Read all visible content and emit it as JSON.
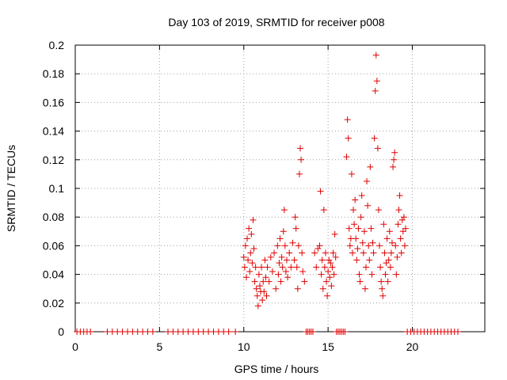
{
  "chart_data": {
    "type": "scatter",
    "title": "Day 103 of 2019, SRMTID for receiver p008",
    "xlabel": "GPS time / hours",
    "ylabel": "SRMTID / TECUs",
    "xlim": [
      0,
      24.3
    ],
    "ylim": [
      0,
      0.2
    ],
    "x_ticks": [
      0,
      5,
      10,
      15,
      20
    ],
    "y_ticks": [
      0,
      0.02,
      0.04,
      0.06,
      0.08,
      0.1,
      0.12,
      0.14,
      0.16,
      0.18,
      0.2
    ],
    "x_tick_labels": [
      "0",
      "5",
      "10",
      "15",
      "20"
    ],
    "y_tick_labels": [
      "0",
      "0.02",
      "0.04",
      "0.06",
      "0.08",
      "0.1",
      "0.12",
      "0.14",
      "0.16",
      "0.18",
      "0.2"
    ],
    "grid": true,
    "marker": "+",
    "series": [
      {
        "name": "SRMTID",
        "color": "#e00000",
        "points": [
          [
            0.1,
            0
          ],
          [
            0.3,
            0
          ],
          [
            0.5,
            0
          ],
          [
            0.7,
            0
          ],
          [
            0.9,
            0
          ],
          [
            1.9,
            0
          ],
          [
            2.2,
            0
          ],
          [
            2.5,
            0
          ],
          [
            2.8,
            0
          ],
          [
            3.1,
            0
          ],
          [
            3.4,
            0
          ],
          [
            3.7,
            0
          ],
          [
            4.0,
            0
          ],
          [
            4.3,
            0
          ],
          [
            4.6,
            0
          ],
          [
            5.5,
            0
          ],
          [
            5.8,
            0
          ],
          [
            6.1,
            0
          ],
          [
            6.4,
            0
          ],
          [
            6.7,
            0
          ],
          [
            7.0,
            0
          ],
          [
            7.3,
            0
          ],
          [
            7.6,
            0
          ],
          [
            7.9,
            0
          ],
          [
            8.2,
            0
          ],
          [
            8.5,
            0
          ],
          [
            8.8,
            0
          ],
          [
            9.1,
            0
          ],
          [
            9.5,
            0
          ],
          [
            10.0,
            0.052
          ],
          [
            10.05,
            0.045
          ],
          [
            10.1,
            0.06
          ],
          [
            10.15,
            0.038
          ],
          [
            10.2,
            0.065
          ],
          [
            10.25,
            0.05
          ],
          [
            10.3,
            0.072
          ],
          [
            10.35,
            0.042
          ],
          [
            10.4,
            0.055
          ],
          [
            10.45,
            0.068
          ],
          [
            10.5,
            0.048
          ],
          [
            10.55,
            0.078
          ],
          [
            10.6,
            0.058
          ],
          [
            10.65,
            0.035
          ],
          [
            10.7,
            0.045
          ],
          [
            10.75,
            0.03
          ],
          [
            10.8,
            0.025
          ],
          [
            10.85,
            0.018
          ],
          [
            10.9,
            0.04
          ],
          [
            10.95,
            0.032
          ],
          [
            11.0,
            0.028
          ],
          [
            11.05,
            0.045
          ],
          [
            11.1,
            0.022
          ],
          [
            11.15,
            0.035
          ],
          [
            11.2,
            0.028
          ],
          [
            11.25,
            0.05
          ],
          [
            11.3,
            0.038
          ],
          [
            11.35,
            0.025
          ],
          [
            11.4,
            0.045
          ],
          [
            11.5,
            0.035
          ],
          [
            11.6,
            0.052
          ],
          [
            11.7,
            0.042
          ],
          [
            11.8,
            0.055
          ],
          [
            11.9,
            0.03
          ],
          [
            12.0,
            0.06
          ],
          [
            12.05,
            0.04
          ],
          [
            12.1,
            0.048
          ],
          [
            12.15,
            0.065
          ],
          [
            12.2,
            0.035
          ],
          [
            12.25,
            0.052
          ],
          [
            12.3,
            0.045
          ],
          [
            12.35,
            0.07
          ],
          [
            12.4,
            0.085
          ],
          [
            12.45,
            0.06
          ],
          [
            12.5,
            0.042
          ],
          [
            12.55,
            0.05
          ],
          [
            12.6,
            0.038
          ],
          [
            12.7,
            0.055
          ],
          [
            12.8,
            0.045
          ],
          [
            12.9,
            0.062
          ],
          [
            13.0,
            0.05
          ],
          [
            13.05,
            0.08
          ],
          [
            13.1,
            0.072
          ],
          [
            13.15,
            0.045
          ],
          [
            13.2,
            0.03
          ],
          [
            13.25,
            0.06
          ],
          [
            13.3,
            0.11
          ],
          [
            13.35,
            0.128
          ],
          [
            13.4,
            0.12
          ],
          [
            13.45,
            0.055
          ],
          [
            13.5,
            0.042
          ],
          [
            13.6,
            0.035
          ],
          [
            13.7,
            0
          ],
          [
            13.8,
            0
          ],
          [
            13.9,
            0
          ],
          [
            14.0,
            0
          ],
          [
            14.1,
            0
          ],
          [
            14.2,
            0.055
          ],
          [
            14.3,
            0.045
          ],
          [
            14.4,
            0.058
          ],
          [
            14.5,
            0.06
          ],
          [
            14.55,
            0.098
          ],
          [
            14.6,
            0.04
          ],
          [
            14.65,
            0.05
          ],
          [
            14.7,
            0.03
          ],
          [
            14.75,
            0.085
          ],
          [
            14.8,
            0.045
          ],
          [
            14.85,
            0.055
          ],
          [
            14.9,
            0.035
          ],
          [
            14.95,
            0.025
          ],
          [
            15.0,
            0.042
          ],
          [
            15.05,
            0.05
          ],
          [
            15.1,
            0.038
          ],
          [
            15.15,
            0.048
          ],
          [
            15.2,
            0.032
          ],
          [
            15.25,
            0.045
          ],
          [
            15.3,
            0.055
          ],
          [
            15.35,
            0.04
          ],
          [
            15.4,
            0.068
          ],
          [
            15.45,
            0.052
          ],
          [
            15.5,
            0
          ],
          [
            15.6,
            0
          ],
          [
            15.7,
            0
          ],
          [
            15.8,
            0
          ],
          [
            15.9,
            0
          ],
          [
            16.0,
            0
          ],
          [
            16.1,
            0.122
          ],
          [
            16.15,
            0.148
          ],
          [
            16.2,
            0.135
          ],
          [
            16.25,
            0.072
          ],
          [
            16.3,
            0.06
          ],
          [
            16.35,
            0.065
          ],
          [
            16.4,
            0.11
          ],
          [
            16.45,
            0.055
          ],
          [
            16.5,
            0.085
          ],
          [
            16.55,
            0.075
          ],
          [
            16.6,
            0.092
          ],
          [
            16.65,
            0.065
          ],
          [
            16.7,
            0.05
          ],
          [
            16.75,
            0.058
          ],
          [
            16.8,
            0.072
          ],
          [
            16.85,
            0.04
          ],
          [
            16.9,
            0.035
          ],
          [
            16.95,
            0.08
          ],
          [
            17.0,
            0.095
          ],
          [
            17.05,
            0.062
          ],
          [
            17.1,
            0.055
          ],
          [
            17.15,
            0.07
          ],
          [
            17.2,
            0.03
          ],
          [
            17.25,
            0.045
          ],
          [
            17.3,
            0.105
          ],
          [
            17.35,
            0.088
          ],
          [
            17.4,
            0.06
          ],
          [
            17.45,
            0.05
          ],
          [
            17.5,
            0.115
          ],
          [
            17.55,
            0.072
          ],
          [
            17.6,
            0.04
          ],
          [
            17.65,
            0.062
          ],
          [
            17.7,
            0.055
          ],
          [
            17.75,
            0.135
          ],
          [
            17.8,
            0.168
          ],
          [
            17.85,
            0.193
          ],
          [
            17.9,
            0.175
          ],
          [
            17.95,
            0.128
          ],
          [
            18.0,
            0.085
          ],
          [
            18.05,
            0.06
          ],
          [
            18.1,
            0.045
          ],
          [
            18.15,
            0.035
          ],
          [
            18.2,
            0.03
          ],
          [
            18.25,
            0.025
          ],
          [
            18.3,
            0.075
          ],
          [
            18.35,
            0.055
          ],
          [
            18.4,
            0.04
          ],
          [
            18.45,
            0.048
          ],
          [
            18.5,
            0.065
          ],
          [
            18.55,
            0.035
          ],
          [
            18.6,
            0.05
          ],
          [
            18.65,
            0.07
          ],
          [
            18.7,
            0.045
          ],
          [
            18.75,
            0.055
          ],
          [
            18.8,
            0.062
          ],
          [
            18.85,
            0.115
          ],
          [
            18.9,
            0.12
          ],
          [
            18.95,
            0.125
          ],
          [
            19.0,
            0.06
          ],
          [
            19.05,
            0.04
          ],
          [
            19.1,
            0.052
          ],
          [
            19.15,
            0.075
          ],
          [
            19.2,
            0.085
          ],
          [
            19.25,
            0.095
          ],
          [
            19.3,
            0.065
          ],
          [
            19.35,
            0.055
          ],
          [
            19.4,
            0.078
          ],
          [
            19.45,
            0.07
          ],
          [
            19.5,
            0.08
          ],
          [
            19.55,
            0.06
          ],
          [
            19.6,
            0.072
          ],
          [
            19.7,
            0
          ],
          [
            19.9,
            0
          ],
          [
            20.1,
            0
          ],
          [
            20.3,
            0
          ],
          [
            20.5,
            0
          ],
          [
            20.7,
            0
          ],
          [
            20.9,
            0
          ],
          [
            21.1,
            0
          ],
          [
            21.3,
            0
          ],
          [
            21.5,
            0
          ],
          [
            21.7,
            0
          ],
          [
            21.9,
            0
          ],
          [
            22.1,
            0
          ],
          [
            22.3,
            0
          ],
          [
            22.5,
            0
          ],
          [
            22.7,
            0
          ]
        ]
      }
    ]
  }
}
